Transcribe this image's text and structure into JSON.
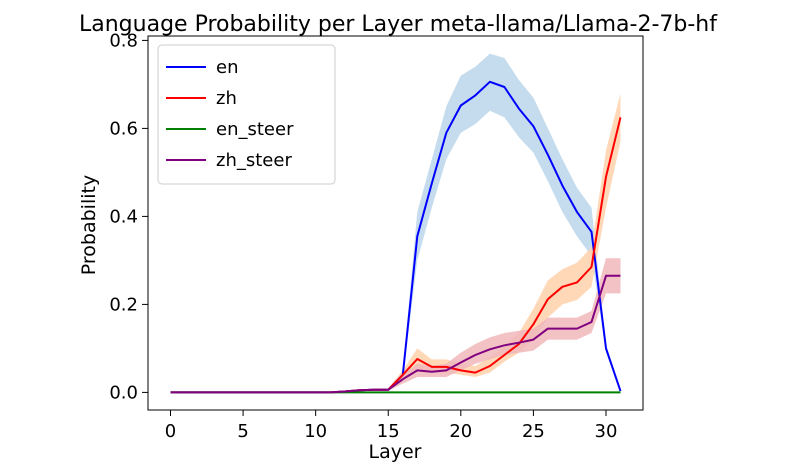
{
  "chart_data": {
    "type": "line",
    "title": "Language Probability per Layer meta-llama/Llama-2-7b-hf",
    "xlabel": "Layer",
    "ylabel": "Probability",
    "xlim": [
      -1.55,
      32.55
    ],
    "ylim": [
      -0.04,
      0.81
    ],
    "xticks": [
      0,
      5,
      10,
      15,
      20,
      25,
      30
    ],
    "xtick_labels": [
      "0",
      "5",
      "10",
      "15",
      "20",
      "25",
      "30"
    ],
    "yticks": [
      0.0,
      0.2,
      0.4,
      0.6,
      0.8
    ],
    "ytick_labels": [
      "0.0",
      "0.2",
      "0.4",
      "0.6",
      "0.8"
    ],
    "grid": false,
    "legend_position": "top-left",
    "x": [
      0,
      1,
      2,
      3,
      4,
      5,
      6,
      7,
      8,
      9,
      10,
      11,
      12,
      13,
      14,
      15,
      16,
      17,
      18,
      19,
      20,
      21,
      22,
      23,
      24,
      25,
      26,
      27,
      28,
      29,
      30,
      31
    ],
    "series": [
      {
        "name": "en",
        "color": "#0000ff",
        "band_color": "#bad6ea",
        "values": [
          0,
          0,
          0,
          0,
          0,
          0,
          0,
          0,
          0,
          0,
          0,
          0,
          0.002,
          0.005,
          0.006,
          0.006,
          0.04,
          0.355,
          0.475,
          0.59,
          0.652,
          0.675,
          0.706,
          0.694,
          0.645,
          0.605,
          0.54,
          0.47,
          0.41,
          0.365,
          0.1,
          0.003
        ],
        "lower": [
          0,
          0,
          0,
          0,
          0,
          0,
          0,
          0,
          0,
          0,
          0,
          0,
          0.001,
          0.003,
          0.004,
          0.004,
          0.03,
          0.3,
          0.42,
          0.53,
          0.59,
          0.61,
          0.64,
          0.625,
          0.58,
          0.545,
          0.48,
          0.41,
          0.355,
          0.31,
          0.09,
          0.002
        ],
        "upper": [
          0,
          0,
          0,
          0,
          0,
          0,
          0,
          0,
          0,
          0,
          0,
          0,
          0.003,
          0.007,
          0.008,
          0.008,
          0.05,
          0.41,
          0.53,
          0.65,
          0.72,
          0.74,
          0.77,
          0.76,
          0.71,
          0.67,
          0.6,
          0.53,
          0.465,
          0.42,
          0.11,
          0.004
        ]
      },
      {
        "name": "zh",
        "color": "#ff0000",
        "band_color": "#ffd1ac",
        "values": [
          0,
          0,
          0,
          0,
          0,
          0,
          0,
          0,
          0,
          0,
          0,
          0,
          0.002,
          0.005,
          0.006,
          0.006,
          0.04,
          0.076,
          0.058,
          0.058,
          0.05,
          0.045,
          0.06,
          0.085,
          0.11,
          0.155,
          0.212,
          0.24,
          0.25,
          0.285,
          0.49,
          0.625
        ],
        "lower": [
          0,
          0,
          0,
          0,
          0,
          0,
          0,
          0,
          0,
          0,
          0,
          0,
          0.001,
          0.003,
          0.004,
          0.004,
          0.03,
          0.055,
          0.045,
          0.045,
          0.04,
          0.035,
          0.045,
          0.07,
          0.09,
          0.12,
          0.17,
          0.2,
          0.21,
          0.24,
          0.42,
          0.57
        ],
        "upper": [
          0,
          0,
          0,
          0,
          0,
          0,
          0,
          0,
          0,
          0,
          0,
          0,
          0.003,
          0.007,
          0.008,
          0.008,
          0.05,
          0.1,
          0.075,
          0.075,
          0.065,
          0.06,
          0.08,
          0.105,
          0.135,
          0.19,
          0.255,
          0.28,
          0.295,
          0.33,
          0.55,
          0.68
        ]
      },
      {
        "name": "en_steer",
        "color": "#008000",
        "band_color": "#c8e6c8",
        "values": [
          0,
          0,
          0,
          0,
          0,
          0,
          0,
          0,
          0,
          0,
          0,
          0,
          0,
          0,
          0,
          0,
          0,
          0,
          0,
          0,
          0,
          0,
          0,
          0,
          0,
          0,
          0,
          0,
          0,
          0,
          0,
          0
        ],
        "lower": [
          0,
          0,
          0,
          0,
          0,
          0,
          0,
          0,
          0,
          0,
          0,
          0,
          0,
          0,
          0,
          0,
          0,
          0,
          0,
          0,
          0,
          0,
          0,
          0,
          0,
          0,
          0,
          0,
          0,
          0,
          0,
          0
        ],
        "upper": [
          0,
          0,
          0,
          0,
          0,
          0,
          0,
          0,
          0,
          0,
          0,
          0,
          0,
          0,
          0,
          0,
          0,
          0,
          0,
          0,
          0,
          0,
          0,
          0,
          0,
          0,
          0,
          0,
          0,
          0,
          0,
          0
        ]
      },
      {
        "name": "zh_steer",
        "color": "#800080",
        "band_color": "#f0b7ba",
        "values": [
          0,
          0,
          0,
          0,
          0,
          0,
          0,
          0,
          0,
          0,
          0,
          0,
          0.002,
          0.005,
          0.006,
          0.006,
          0.03,
          0.05,
          0.047,
          0.05,
          0.068,
          0.085,
          0.098,
          0.107,
          0.113,
          0.12,
          0.145,
          0.145,
          0.145,
          0.16,
          0.265,
          0.265
        ],
        "lower": [
          0,
          0,
          0,
          0,
          0,
          0,
          0,
          0,
          0,
          0,
          0,
          0,
          0.001,
          0.003,
          0.004,
          0.004,
          0.02,
          0.035,
          0.035,
          0.035,
          0.05,
          0.065,
          0.075,
          0.085,
          0.09,
          0.095,
          0.12,
          0.12,
          0.12,
          0.135,
          0.225,
          0.225
        ],
        "upper": [
          0,
          0,
          0,
          0,
          0,
          0,
          0,
          0,
          0,
          0,
          0,
          0,
          0.003,
          0.007,
          0.008,
          0.008,
          0.04,
          0.065,
          0.06,
          0.065,
          0.09,
          0.11,
          0.125,
          0.135,
          0.14,
          0.145,
          0.17,
          0.17,
          0.17,
          0.185,
          0.305,
          0.305
        ]
      }
    ]
  }
}
